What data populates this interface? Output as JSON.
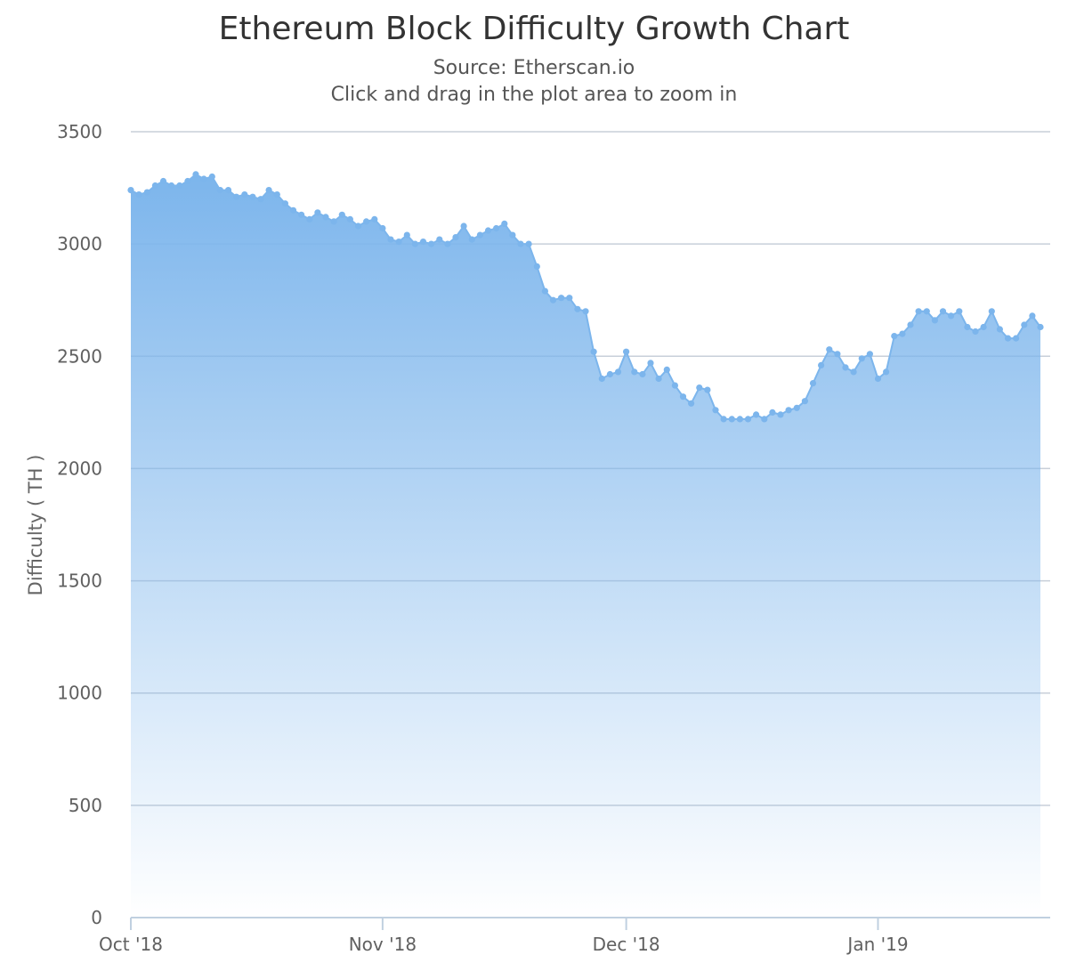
{
  "colors": {
    "series": "#7cb5ec",
    "grid": "#c8cfd9",
    "axis": "#c0d0e0",
    "title": "#333333",
    "subtitle": "#555555"
  },
  "chart_data": {
    "type": "area",
    "title": "Ethereum Block Difficulty Growth Chart",
    "subtitle": "Source: Etherscan.io",
    "subtitle2": "Click and drag in the plot area to zoom in",
    "xlabel": "",
    "ylabel": "Difficulty ( TH )",
    "ylim": [
      0,
      3500
    ],
    "yticks": [
      0,
      500,
      1000,
      1500,
      2000,
      2500,
      3000,
      3500
    ],
    "xlim": [
      "2018-10-01",
      "2019-01-21"
    ],
    "xticks": [
      {
        "date": "2018-10-01",
        "label": "Oct '18"
      },
      {
        "date": "2018-11-01",
        "label": "Nov '18"
      },
      {
        "date": "2018-12-01",
        "label": "Dec '18"
      },
      {
        "date": "2019-01-01",
        "label": "Jan '19"
      }
    ],
    "grid": true,
    "legend": "none",
    "series": [
      {
        "x": [
          "2018-10-01",
          "2018-10-02",
          "2018-10-03",
          "2018-10-04",
          "2018-10-05",
          "2018-10-06",
          "2018-10-07",
          "2018-10-08",
          "2018-10-09",
          "2018-10-10",
          "2018-10-11",
          "2018-10-12",
          "2018-10-13",
          "2018-10-14",
          "2018-10-15",
          "2018-10-16",
          "2018-10-17",
          "2018-10-18",
          "2018-10-19",
          "2018-10-20",
          "2018-10-21",
          "2018-10-22",
          "2018-10-23",
          "2018-10-24",
          "2018-10-25",
          "2018-10-26",
          "2018-10-27",
          "2018-10-28",
          "2018-10-29",
          "2018-10-30",
          "2018-10-31",
          "2018-11-01",
          "2018-11-02",
          "2018-11-03",
          "2018-11-04",
          "2018-11-05",
          "2018-11-06",
          "2018-11-07",
          "2018-11-08",
          "2018-11-09",
          "2018-11-10",
          "2018-11-11",
          "2018-11-12",
          "2018-11-13",
          "2018-11-14",
          "2018-11-15",
          "2018-11-16",
          "2018-11-17",
          "2018-11-18",
          "2018-11-19",
          "2018-11-20",
          "2018-11-21",
          "2018-11-22",
          "2018-11-23",
          "2018-11-24",
          "2018-11-25",
          "2018-11-26",
          "2018-11-27",
          "2018-11-28",
          "2018-11-29",
          "2018-11-30",
          "2018-12-01",
          "2018-12-02",
          "2018-12-03",
          "2018-12-04",
          "2018-12-05",
          "2018-12-06",
          "2018-12-07",
          "2018-12-08",
          "2018-12-09",
          "2018-12-10",
          "2018-12-11",
          "2018-12-12",
          "2018-12-13",
          "2018-12-14",
          "2018-12-15",
          "2018-12-16",
          "2018-12-17",
          "2018-12-18",
          "2018-12-19",
          "2018-12-20",
          "2018-12-21",
          "2018-12-22",
          "2018-12-23",
          "2018-12-24",
          "2018-12-25",
          "2018-12-26",
          "2018-12-27",
          "2018-12-28",
          "2018-12-29",
          "2018-12-30",
          "2018-12-31",
          "2019-01-01",
          "2019-01-02",
          "2019-01-03",
          "2019-01-04",
          "2019-01-05",
          "2019-01-06",
          "2019-01-07",
          "2019-01-08",
          "2019-01-09",
          "2019-01-10",
          "2019-01-11",
          "2019-01-12",
          "2019-01-13",
          "2019-01-14",
          "2019-01-15",
          "2019-01-16",
          "2019-01-17",
          "2019-01-18",
          "2019-01-19",
          "2019-01-20",
          "2019-01-21"
        ],
        "values": [
          3240,
          3220,
          3230,
          3260,
          3280,
          3260,
          3260,
          3280,
          3310,
          3290,
          3300,
          3240,
          3240,
          3210,
          3220,
          3210,
          3200,
          3240,
          3220,
          3180,
          3150,
          3130,
          3110,
          3140,
          3120,
          3100,
          3130,
          3110,
          3080,
          3100,
          3110,
          3070,
          3020,
          3010,
          3040,
          3000,
          3010,
          3000,
          3020,
          3000,
          3030,
          3080,
          3020,
          3040,
          3060,
          3070,
          3090,
          3040,
          3000,
          3000,
          2900,
          2790,
          2750,
          2760,
          2760,
          2710,
          2700,
          2520,
          2400,
          2420,
          2430,
          2520,
          2430,
          2420,
          2470,
          2400,
          2440,
          2370,
          2320,
          2290,
          2360,
          2350,
          2260,
          2220,
          2220,
          2220,
          2220,
          2240,
          2220,
          2250,
          2240,
          2260,
          2270,
          2300,
          2380,
          2460,
          2530,
          2510,
          2450,
          2430,
          2490,
          2510,
          2400,
          2430,
          2590,
          2600,
          2640,
          2700,
          2700,
          2660,
          2700,
          2680,
          2700,
          2630,
          2610,
          2630,
          2700,
          2620,
          2580,
          2580,
          2640,
          2680,
          2630
        ]
      }
    ]
  }
}
